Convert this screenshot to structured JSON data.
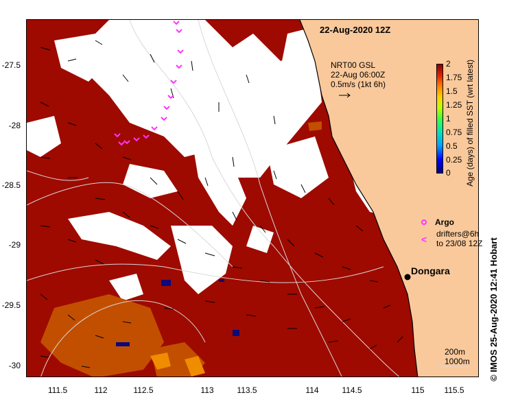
{
  "map": {
    "title": "22-Aug-2020 12Z",
    "y_ticks": [
      "-27.5",
      "-28",
      "-28.5",
      "-29",
      "-29.5",
      "-30"
    ],
    "x_ticks": [
      "111.5",
      "112",
      "112.5",
      "113",
      "113.5",
      "114",
      "114.5",
      "115",
      "115.5"
    ],
    "place_label": "Dongara",
    "current_note": {
      "line1": "NRT00 GSL",
      "line2": "22-Aug 06:00Z",
      "line3": "0.5m/s (1kt 6h)"
    },
    "legend": {
      "argo_label": "Argo",
      "drifters_line1": "drifters@6h",
      "drifters_line2": "to 23/08 12Z"
    },
    "contours": {
      "line1": "200m",
      "line2": "1000m"
    },
    "colors": {
      "ocean_fill": "#9e0a00",
      "land": "#fac99b",
      "cloud_gap": "#ffffff",
      "argo": "#ff33ff",
      "warm_patch": "#c24f00"
    }
  },
  "colorbar": {
    "ticks": [
      "2",
      "1.75",
      "1.5",
      "1.25",
      "1",
      "0.75",
      "0.5",
      "0.25",
      "0"
    ],
    "title": "Age (days) of filled SST (wrt latest)"
  },
  "credit": "© IMOS 25-Aug-2020 12:41 Hobart"
}
